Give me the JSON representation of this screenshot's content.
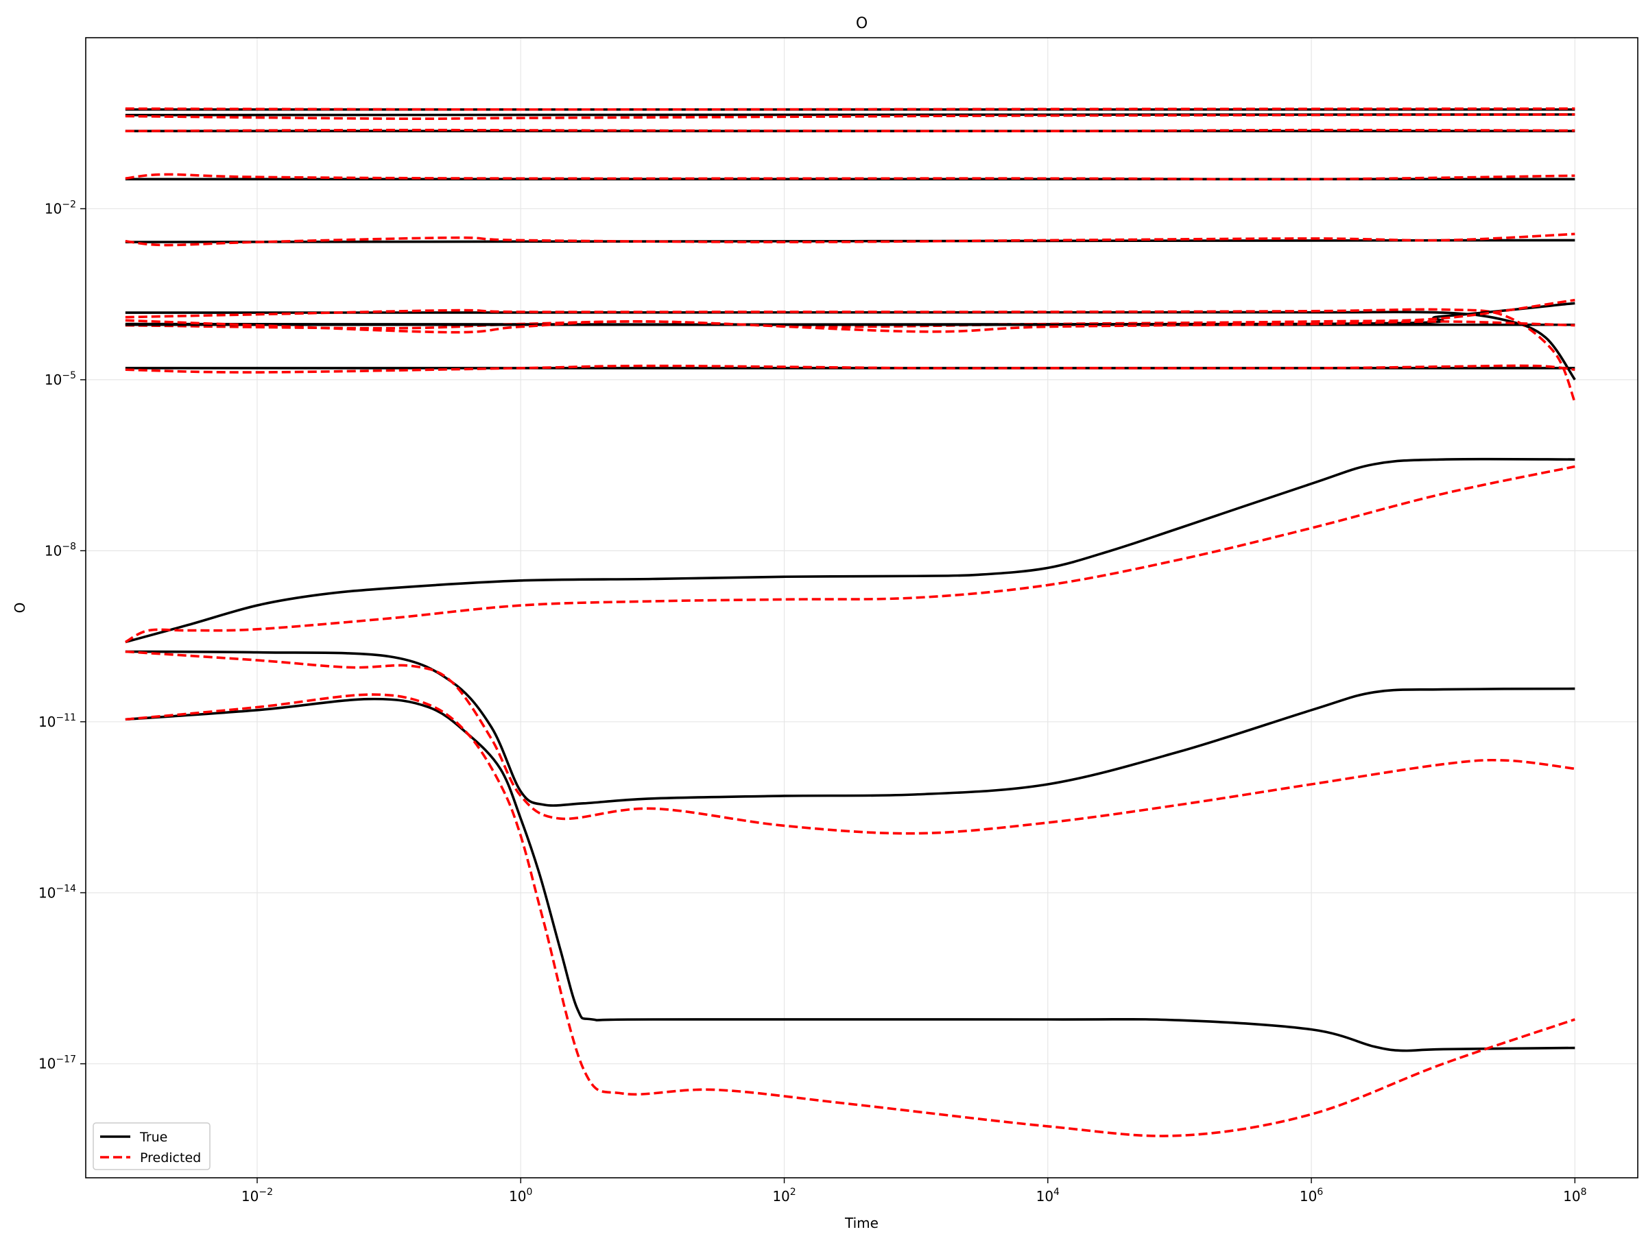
{
  "chart_data": {
    "type": "line",
    "title": "O",
    "xlabel": "Time",
    "ylabel": "O",
    "xscale": "log",
    "yscale": "log",
    "xlim": [
      0.0005,
      300000000
    ],
    "ylim": [
      1e-19,
      10.0
    ],
    "grid": true,
    "legend_position": "lower-left",
    "legend": [
      {
        "label": "True",
        "color": "#000000",
        "dash": "solid"
      },
      {
        "label": "Predicted",
        "color": "#ff0000",
        "dash": "dashed"
      }
    ],
    "x_ticks": [
      {
        "value": 0.01,
        "label": "10",
        "exp": "−2"
      },
      {
        "value": 1,
        "label": "10",
        "exp": "0"
      },
      {
        "value": 100,
        "label": "10",
        "exp": "2"
      },
      {
        "value": 10000,
        "label": "10",
        "exp": "4"
      },
      {
        "value": 1000000,
        "label": "10",
        "exp": "6"
      },
      {
        "value": 100000000,
        "label": "10",
        "exp": "8"
      }
    ],
    "y_ticks": [
      {
        "value": 0.01,
        "label": "10",
        "exp": "−2"
      },
      {
        "value": 1e-05,
        "label": "10",
        "exp": "−5"
      },
      {
        "value": 1e-08,
        "label": "10",
        "exp": "−8"
      },
      {
        "value": 1e-11,
        "label": "10",
        "exp": "−11"
      },
      {
        "value": 1e-14,
        "label": "10",
        "exp": "−14"
      },
      {
        "value": 1e-17,
        "label": "10",
        "exp": "−17"
      }
    ],
    "series": [
      {
        "group": "True",
        "color": "#000000",
        "dash": "solid",
        "points": [
          [
            0.001,
            0.55
          ],
          [
            100000000.0,
            0.55
          ]
        ]
      },
      {
        "group": "Predicted",
        "color": "#ff0000",
        "dash": "dashed",
        "points": [
          [
            0.001,
            0.57
          ],
          [
            1,
            0.55
          ],
          [
            10000.0,
            0.56
          ],
          [
            100000000.0,
            0.57
          ]
        ]
      },
      {
        "group": "True",
        "color": "#000000",
        "dash": "solid",
        "points": [
          [
            0.001,
            0.44
          ],
          [
            100000000.0,
            0.45
          ]
        ]
      },
      {
        "group": "Predicted",
        "color": "#ff0000",
        "dash": "dashed",
        "points": [
          [
            0.001,
            0.42
          ],
          [
            0.1,
            0.38
          ],
          [
            1,
            0.39
          ],
          [
            100,
            0.41
          ],
          [
            10000.0,
            0.43
          ],
          [
            100000000.0,
            0.45
          ]
        ]
      },
      {
        "group": "True",
        "color": "#000000",
        "dash": "solid",
        "points": [
          [
            0.001,
            0.23
          ],
          [
            100000000.0,
            0.23
          ]
        ]
      },
      {
        "group": "Predicted",
        "color": "#ff0000",
        "dash": "dashed",
        "points": [
          [
            0.001,
            0.23
          ],
          [
            0.1,
            0.24
          ],
          [
            10,
            0.235
          ],
          [
            10000.0,
            0.23
          ],
          [
            1000000.0,
            0.24
          ],
          [
            100000000.0,
            0.235
          ]
        ]
      },
      {
        "group": "True",
        "color": "#000000",
        "dash": "solid",
        "points": [
          [
            0.001,
            0.033
          ],
          [
            100000000.0,
            0.033
          ]
        ]
      },
      {
        "group": "Predicted",
        "color": "#ff0000",
        "dash": "dashed",
        "points": [
          [
            0.001,
            0.034
          ],
          [
            0.002,
            0.04
          ],
          [
            0.01,
            0.036
          ],
          [
            1,
            0.034
          ],
          [
            10000.0,
            0.034
          ],
          [
            1000000.0,
            0.033
          ],
          [
            100000000.0,
            0.038
          ]
        ]
      },
      {
        "group": "True",
        "color": "#000000",
        "dash": "solid",
        "points": [
          [
            0.001,
            0.0026
          ],
          [
            100000000.0,
            0.0028
          ]
        ]
      },
      {
        "group": "Predicted",
        "color": "#ff0000",
        "dash": "dashed",
        "points": [
          [
            0.001,
            0.0027
          ],
          [
            0.002,
            0.0023
          ],
          [
            0.01,
            0.0026
          ],
          [
            0.3,
            0.0031
          ],
          [
            1,
            0.0028
          ],
          [
            100,
            0.0026
          ],
          [
            10000.0,
            0.0028
          ],
          [
            1000000.0,
            0.003
          ],
          [
            10000000.0,
            0.0028
          ],
          [
            100000000.0,
            0.0036
          ]
        ]
      },
      {
        "group": "True",
        "color": "#000000",
        "dash": "solid",
        "points": [
          [
            0.001,
            0.00015
          ],
          [
            10000.0,
            0.000152
          ],
          [
            1000000.0,
            0.000152
          ],
          [
            10000000.0,
            0.00015
          ],
          [
            30000000.0,
            0.00011
          ],
          [
            60000000.0,
            5.5e-05
          ],
          [
            100000000.0,
            1e-05
          ]
        ]
      },
      {
        "group": "Predicted",
        "color": "#ff0000",
        "dash": "dashed",
        "points": [
          [
            0.001,
            0.000125
          ],
          [
            0.01,
            0.00014
          ],
          [
            0.3,
            0.000165
          ],
          [
            1,
            0.000155
          ],
          [
            100,
            0.000155
          ],
          [
            10000.0,
            0.000155
          ],
          [
            1000000.0,
            0.00016
          ],
          [
            10000000.0,
            0.00017
          ],
          [
            30000000.0,
            0.00013
          ],
          [
            70000000.0,
            3e-05
          ],
          [
            100000000.0,
            4e-06
          ]
        ]
      },
      {
        "group": "True",
        "color": "#000000",
        "dash": "solid",
        "points": [
          [
            0.001,
            9.5e-05
          ],
          [
            1000000.0,
            9.5e-05
          ],
          [
            10000000.0,
            0.00013
          ],
          [
            100000000.0,
            0.00022
          ]
        ]
      },
      {
        "group": "Predicted",
        "color": "#ff0000",
        "dash": "dashed",
        "points": [
          [
            0.001,
            9e-05
          ],
          [
            0.1,
            8e-05
          ],
          [
            1,
            9.5e-05
          ],
          [
            10,
            0.000105
          ],
          [
            200,
            8.5e-05
          ],
          [
            10000.0,
            9.5e-05
          ],
          [
            1000000.0,
            0.000105
          ],
          [
            10000000.0,
            0.00012
          ],
          [
            100000000.0,
            0.00025
          ]
        ]
      },
      {
        "group": "True",
        "color": "#000000",
        "dash": "solid",
        "points": [
          [
            0.001,
            9.2e-05
          ],
          [
            100000000.0,
            9.2e-05
          ]
        ]
      },
      {
        "group": "Predicted",
        "color": "#ff0000",
        "dash": "dashed",
        "points": [
          [
            0.001,
            0.00011
          ],
          [
            0.01,
            9e-05
          ],
          [
            0.3,
            6.8e-05
          ],
          [
            1,
            8.5e-05
          ],
          [
            10,
            0.000105
          ],
          [
            1000,
            7e-05
          ],
          [
            10000.0,
            8.5e-05
          ],
          [
            1000000.0,
            9.5e-05
          ],
          [
            10000000.0,
            0.000105
          ],
          [
            100000000.0,
            9e-05
          ]
        ]
      },
      {
        "group": "True",
        "color": "#000000",
        "dash": "solid",
        "points": [
          [
            0.001,
            1.6e-05
          ],
          [
            100000000.0,
            1.6e-05
          ]
        ]
      },
      {
        "group": "Predicted",
        "color": "#ff0000",
        "dash": "dashed",
        "points": [
          [
            0.001,
            1.5e-05
          ],
          [
            0.01,
            1.35e-05
          ],
          [
            1,
            1.6e-05
          ],
          [
            10,
            1.75e-05
          ],
          [
            1000,
            1.6e-05
          ],
          [
            10000.0,
            1.6e-05
          ],
          [
            1000000.0,
            1.6e-05
          ],
          [
            10000000.0,
            1.7e-05
          ],
          [
            50000000.0,
            1.75e-05
          ],
          [
            100000000.0,
            1.5e-05
          ]
        ]
      },
      {
        "group": "True",
        "color": "#000000",
        "dash": "solid",
        "points": [
          [
            0.001,
            2.5e-10
          ],
          [
            0.003,
            5e-10
          ],
          [
            0.01,
            1.1e-09
          ],
          [
            0.03,
            1.7e-09
          ],
          [
            0.1,
            2.2e-09
          ],
          [
            1,
            3e-09
          ],
          [
            10,
            3.2e-09
          ],
          [
            100,
            3.5e-09
          ],
          [
            1000.0,
            3.6e-09
          ],
          [
            3000.0,
            3.8e-09
          ],
          [
            10000.0,
            5e-09
          ],
          [
            30000.0,
            1e-08
          ],
          [
            100000.0,
            2.5e-08
          ],
          [
            1000000.0,
            1.5e-07
          ],
          [
            3000000.0,
            3.3e-07
          ],
          [
            10000000.0,
            4e-07
          ],
          [
            100000000.0,
            4e-07
          ]
        ]
      },
      {
        "group": "Predicted",
        "color": "#ff0000",
        "dash": "dashed",
        "points": [
          [
            0.001,
            2.5e-10
          ],
          [
            0.0015,
            4e-10
          ],
          [
            0.003,
            4e-10
          ],
          [
            0.01,
            4.2e-10
          ],
          [
            0.1,
            6.5e-10
          ],
          [
            1,
            1.1e-09
          ],
          [
            10,
            1.3e-09
          ],
          [
            100,
            1.4e-09
          ],
          [
            1000.0,
            1.5e-09
          ],
          [
            10000.0,
            2.5e-09
          ],
          [
            100000.0,
            7e-09
          ],
          [
            1000000.0,
            2.5e-08
          ],
          [
            10000000.0,
            1e-07
          ],
          [
            100000000.0,
            3e-07
          ]
        ]
      },
      {
        "group": "True",
        "color": "#000000",
        "dash": "solid",
        "points": [
          [
            0.001,
            1.7e-10
          ],
          [
            0.01,
            1.65e-10
          ],
          [
            0.1,
            1.4e-10
          ],
          [
            0.3,
            5e-11
          ],
          [
            0.6,
            8e-12
          ],
          [
            1,
            6e-13
          ],
          [
            1.5,
            3.5e-13
          ],
          [
            3,
            3.7e-13
          ],
          [
            10,
            4.5e-13
          ],
          [
            100,
            5e-13
          ],
          [
            1000.0,
            5.3e-13
          ],
          [
            10000.0,
            8e-13
          ],
          [
            100000.0,
            3e-12
          ],
          [
            1000000.0,
            1.6e-11
          ],
          [
            3000000.0,
            3.3e-11
          ],
          [
            10000000.0,
            3.7e-11
          ],
          [
            100000000.0,
            3.8e-11
          ]
        ]
      },
      {
        "group": "Predicted",
        "color": "#ff0000",
        "dash": "dashed",
        "points": [
          [
            0.001,
            1.7e-10
          ],
          [
            0.01,
            1.2e-10
          ],
          [
            0.05,
            9e-11
          ],
          [
            0.15,
            9.5e-11
          ],
          [
            0.3,
            5e-11
          ],
          [
            0.6,
            5e-12
          ],
          [
            1,
            5e-13
          ],
          [
            2,
            2e-13
          ],
          [
            10,
            3e-13
          ],
          [
            100,
            1.5e-13
          ],
          [
            1000.0,
            1.1e-13
          ],
          [
            10000.0,
            1.7e-13
          ],
          [
            100000.0,
            3.5e-13
          ],
          [
            1000000.0,
            8e-13
          ],
          [
            10000000.0,
            1.8e-12
          ],
          [
            30000000.0,
            2.1e-12
          ],
          [
            100000000.0,
            1.5e-12
          ]
        ]
      },
      {
        "group": "True",
        "color": "#000000",
        "dash": "solid",
        "points": [
          [
            0.001,
            1.1e-11
          ],
          [
            0.01,
            1.6e-11
          ],
          [
            0.07,
            2.5e-11
          ],
          [
            0.2,
            1.8e-11
          ],
          [
            0.4,
            6e-12
          ],
          [
            0.7,
            1.5e-12
          ],
          [
            1,
            2e-13
          ],
          [
            1.4,
            2e-14
          ],
          [
            2,
            1e-15
          ],
          [
            2.7,
            9e-17
          ],
          [
            3.5,
            6e-17
          ],
          [
            10,
            6e-17
          ],
          [
            10000.0,
            6e-17
          ],
          [
            100000.0,
            5.8e-17
          ],
          [
            1000000.0,
            4e-17
          ],
          [
            3000000.0,
            2e-17
          ],
          [
            5000000.0,
            1.7e-17
          ],
          [
            10000000.0,
            1.8e-17
          ],
          [
            100000000.0,
            1.9e-17
          ]
        ]
      },
      {
        "group": "Predicted",
        "color": "#ff0000",
        "dash": "dashed",
        "points": [
          [
            0.001,
            1.1e-11
          ],
          [
            0.01,
            1.8e-11
          ],
          [
            0.07,
            3e-11
          ],
          [
            0.2,
            2e-11
          ],
          [
            0.4,
            6e-12
          ],
          [
            0.7,
            8e-13
          ],
          [
            1,
            1e-13
          ],
          [
            1.5,
            3e-15
          ],
          [
            3,
            8e-18
          ],
          [
            6,
            3e-18
          ],
          [
            30,
            3.5e-18
          ],
          [
            300,
            2e-18
          ],
          [
            10000.0,
            8e-19
          ],
          [
            100000.0,
            5.5e-19
          ],
          [
            1000000.0,
            1.3e-18
          ],
          [
            10000000.0,
            1e-17
          ],
          [
            100000000.0,
            6e-17
          ]
        ]
      }
    ]
  }
}
